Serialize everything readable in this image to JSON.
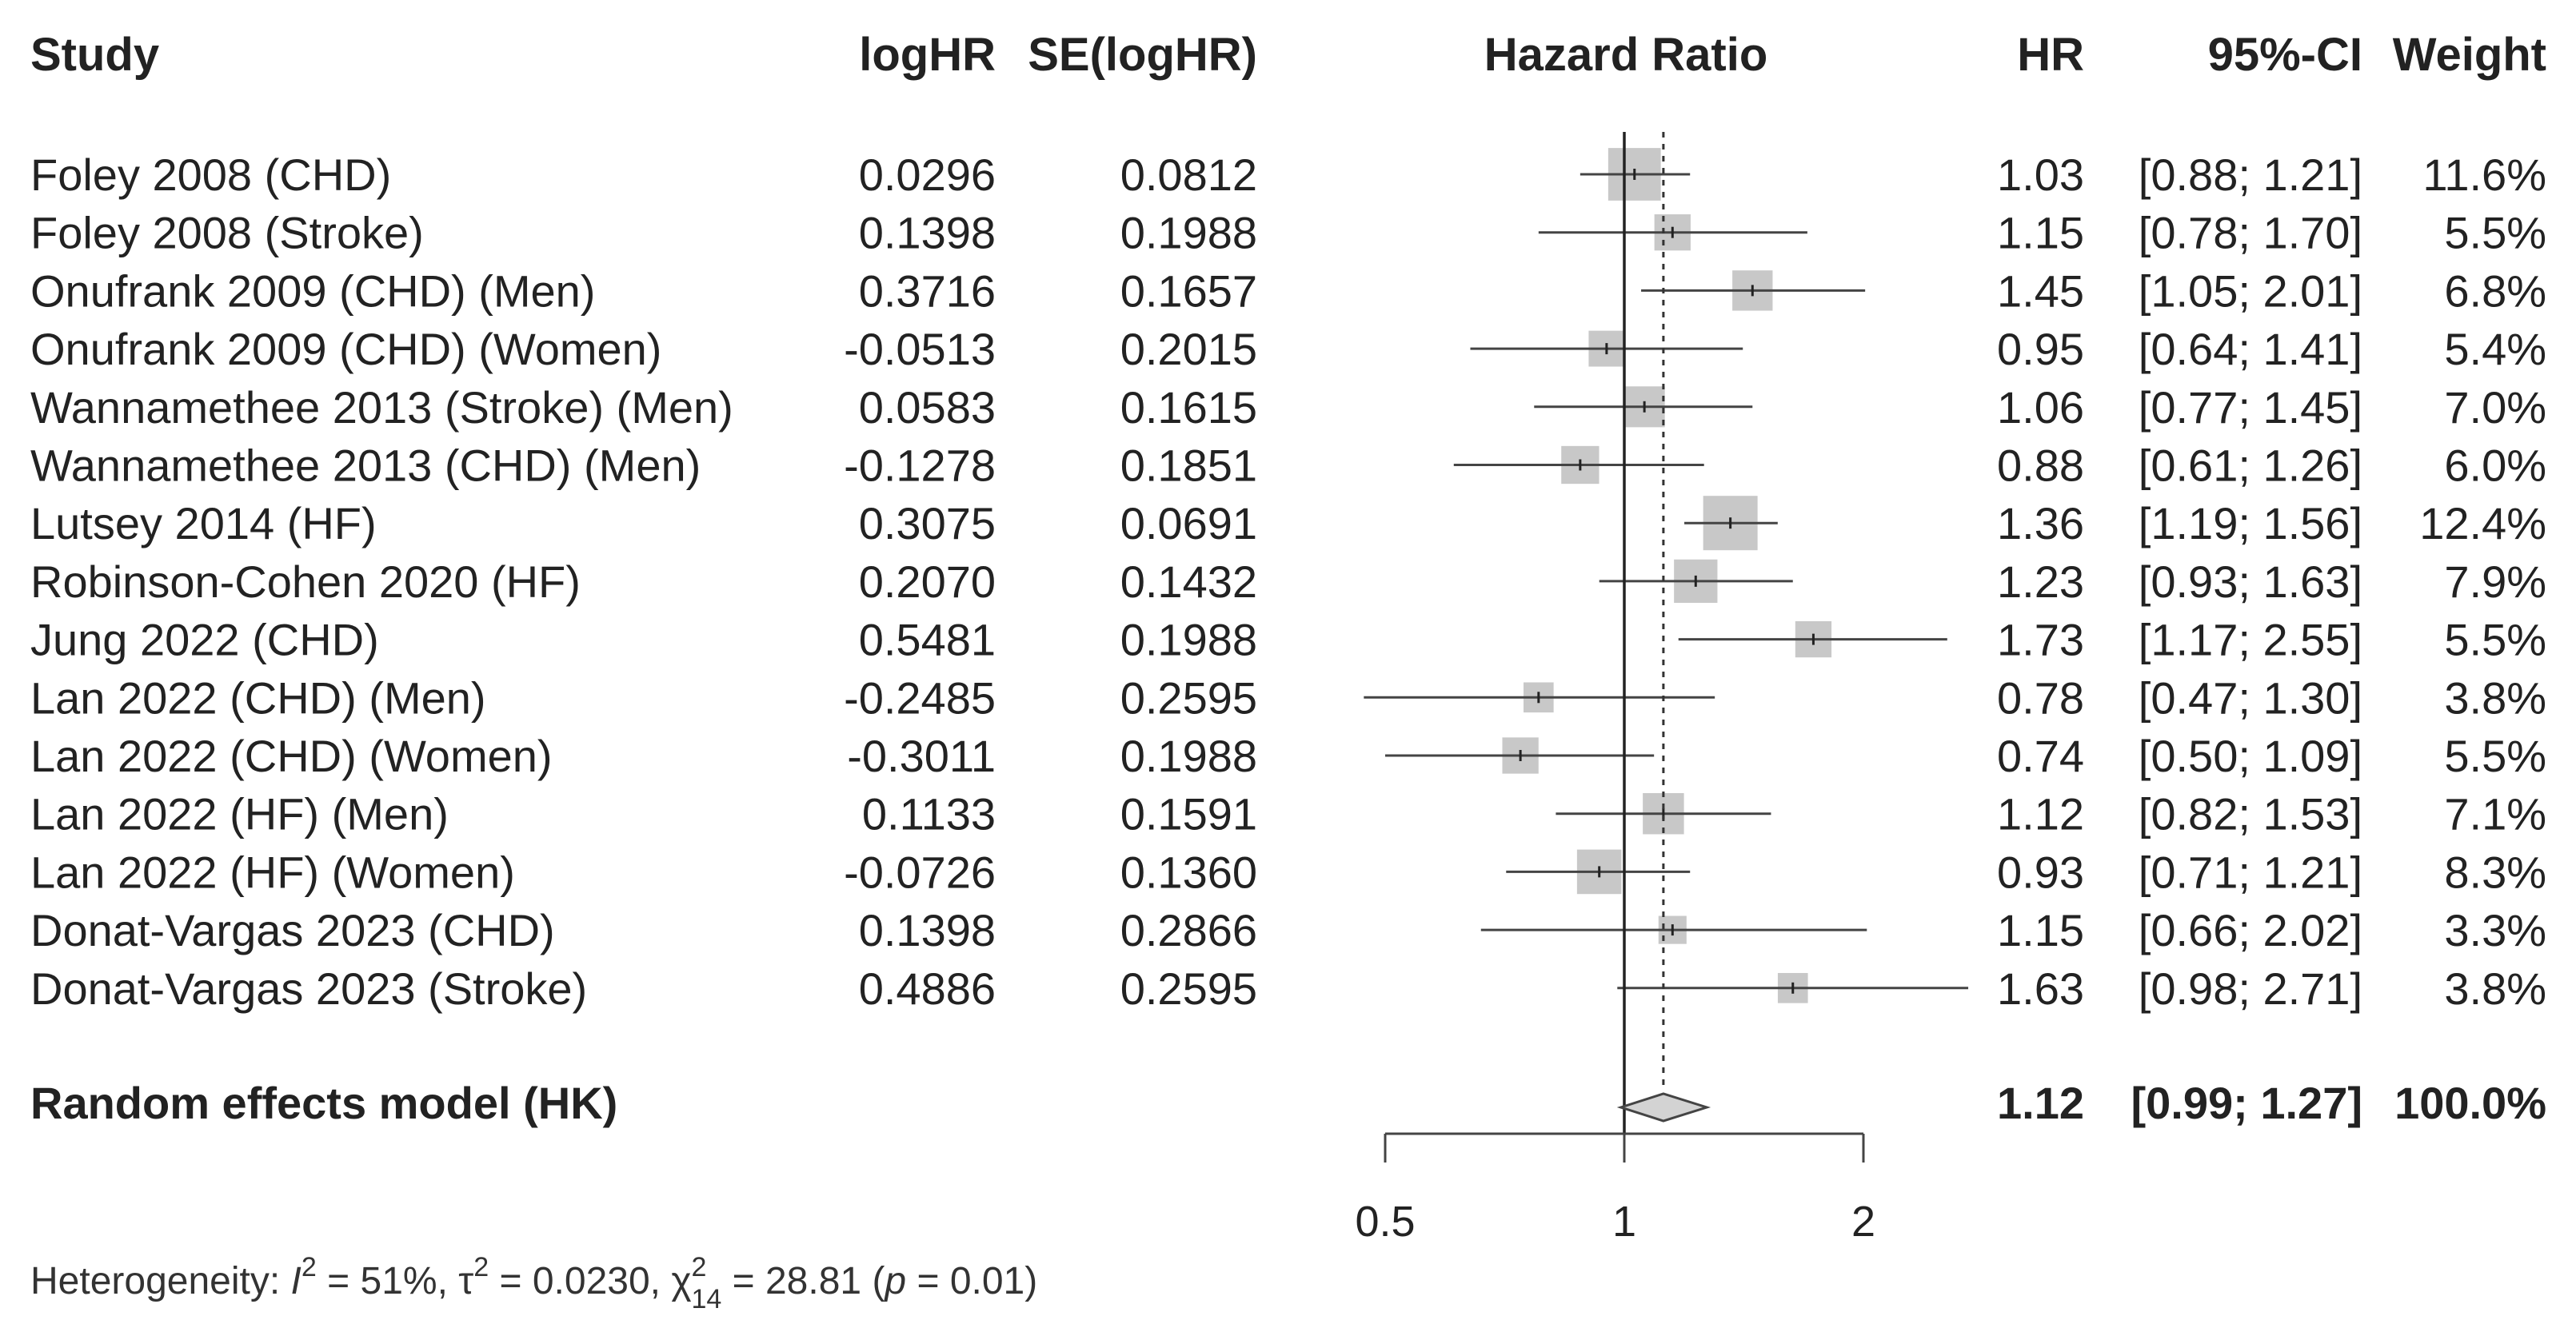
{
  "chart_data": {
    "type": "forest",
    "headers": {
      "study": "Study",
      "loghr": "logHR",
      "se": "SE(logHR)",
      "plot": "Hazard Ratio",
      "hr": "HR",
      "ci": "95%-CI",
      "weight": "Weight"
    },
    "studies": [
      {
        "study": "Foley 2008 (CHD)",
        "loghr": "0.0296",
        "se": "0.0812",
        "hr": 1.03,
        "lo": 0.88,
        "hi": 1.21,
        "hr_text": "1.03",
        "ci_text": "[0.88; 1.21]",
        "weight_text": "11.6%",
        "weight": 11.6
      },
      {
        "study": "Foley 2008 (Stroke)",
        "loghr": "0.1398",
        "se": "0.1988",
        "hr": 1.15,
        "lo": 0.78,
        "hi": 1.7,
        "hr_text": "1.15",
        "ci_text": "[0.78; 1.70]",
        "weight_text": "5.5%",
        "weight": 5.5
      },
      {
        "study": "Onufrank 2009 (CHD) (Men)",
        "loghr": "0.3716",
        "se": "0.1657",
        "hr": 1.45,
        "lo": 1.05,
        "hi": 2.01,
        "hr_text": "1.45",
        "ci_text": "[1.05; 2.01]",
        "weight_text": "6.8%",
        "weight": 6.8
      },
      {
        "study": "Onufrank 2009 (CHD) (Women)",
        "loghr": "-0.0513",
        "se": "0.2015",
        "hr": 0.95,
        "lo": 0.64,
        "hi": 1.41,
        "hr_text": "0.95",
        "ci_text": "[0.64; 1.41]",
        "weight_text": "5.4%",
        "weight": 5.4
      },
      {
        "study": "Wannamethee 2013 (Stroke) (Men)",
        "loghr": "0.0583",
        "se": "0.1615",
        "hr": 1.06,
        "lo": 0.77,
        "hi": 1.45,
        "hr_text": "1.06",
        "ci_text": "[0.77; 1.45]",
        "weight_text": "7.0%",
        "weight": 7.0
      },
      {
        "study": "Wannamethee 2013 (CHD) (Men)",
        "loghr": "-0.1278",
        "se": "0.1851",
        "hr": 0.88,
        "lo": 0.61,
        "hi": 1.26,
        "hr_text": "0.88",
        "ci_text": "[0.61; 1.26]",
        "weight_text": "6.0%",
        "weight": 6.0
      },
      {
        "study": "Lutsey 2014 (HF)",
        "loghr": "0.3075",
        "se": "0.0691",
        "hr": 1.36,
        "lo": 1.19,
        "hi": 1.56,
        "hr_text": "1.36",
        "ci_text": "[1.19; 1.56]",
        "weight_text": "12.4%",
        "weight": 12.4
      },
      {
        "study": "Robinson-Cohen 2020 (HF)",
        "loghr": "0.2070",
        "se": "0.1432",
        "hr": 1.23,
        "lo": 0.93,
        "hi": 1.63,
        "hr_text": "1.23",
        "ci_text": "[0.93; 1.63]",
        "weight_text": "7.9%",
        "weight": 7.9
      },
      {
        "study": "Jung 2022 (CHD)",
        "loghr": "0.5481",
        "se": "0.1988",
        "hr": 1.73,
        "lo": 1.17,
        "hi": 2.55,
        "hr_text": "1.73",
        "ci_text": "[1.17; 2.55]",
        "weight_text": "5.5%",
        "weight": 5.5
      },
      {
        "study": "Lan 2022 (CHD) (Men)",
        "loghr": "-0.2485",
        "se": "0.2595",
        "hr": 0.78,
        "lo": 0.47,
        "hi": 1.3,
        "hr_text": "0.78",
        "ci_text": "[0.47; 1.30]",
        "weight_text": "3.8%",
        "weight": 3.8
      },
      {
        "study": "Lan 2022 (CHD) (Women)",
        "loghr": "-0.3011",
        "se": "0.1988",
        "hr": 0.74,
        "lo": 0.5,
        "hi": 1.09,
        "hr_text": "0.74",
        "ci_text": "[0.50; 1.09]",
        "weight_text": "5.5%",
        "weight": 5.5
      },
      {
        "study": "Lan 2022 (HF) (Men)",
        "loghr": "0.1133",
        "se": "0.1591",
        "hr": 1.12,
        "lo": 0.82,
        "hi": 1.53,
        "hr_text": "1.12",
        "ci_text": "[0.82; 1.53]",
        "weight_text": "7.1%",
        "weight": 7.1
      },
      {
        "study": "Lan 2022 (HF) (Women)",
        "loghr": "-0.0726",
        "se": "0.1360",
        "hr": 0.93,
        "lo": 0.71,
        "hi": 1.21,
        "hr_text": "0.93",
        "ci_text": "[0.71; 1.21]",
        "weight_text": "8.3%",
        "weight": 8.3
      },
      {
        "study": "Donat-Vargas 2023 (CHD)",
        "loghr": "0.1398",
        "se": "0.2866",
        "hr": 1.15,
        "lo": 0.66,
        "hi": 2.02,
        "hr_text": "1.15",
        "ci_text": "[0.66; 2.02]",
        "weight_text": "3.3%",
        "weight": 3.3
      },
      {
        "study": "Donat-Vargas 2023 (Stroke)",
        "loghr": "0.4886",
        "se": "0.2595",
        "hr": 1.63,
        "lo": 0.98,
        "hi": 2.71,
        "hr_text": "1.63",
        "ci_text": "[0.98; 2.71]",
        "weight_text": "3.8%",
        "weight": 3.8
      }
    ],
    "pooled": {
      "label": "Random effects model (HK)",
      "hr": 1.12,
      "lo": 0.99,
      "hi": 1.27,
      "hr_text": "1.12",
      "ci_text": "[0.99; 1.27]",
      "weight_text": "100.0%"
    },
    "axis": {
      "scale": "log",
      "range": [
        0.5,
        2
      ],
      "ticks": [
        0.5,
        1,
        2
      ],
      "tick_labels": [
        "0.5",
        "1",
        "2"
      ],
      "null_value": 1
    },
    "heterogeneity": {
      "prefix": "Heterogeneity: ",
      "i2_symbol": "I",
      "i2_value": " = 51%, ",
      "tau2_symbol": "τ",
      "tau2_value": " = 0.0230, ",
      "chi_symbol": "χ",
      "chi_sub": "14",
      "chi_value": " = 28.81 (",
      "p_symbol": "p",
      "p_value": " = 0.01)",
      "sup": "2"
    },
    "colors": {
      "box": "#c8c8c8",
      "diamond": "#d3d3d3",
      "line": "#444444",
      "text": "#222222"
    }
  }
}
